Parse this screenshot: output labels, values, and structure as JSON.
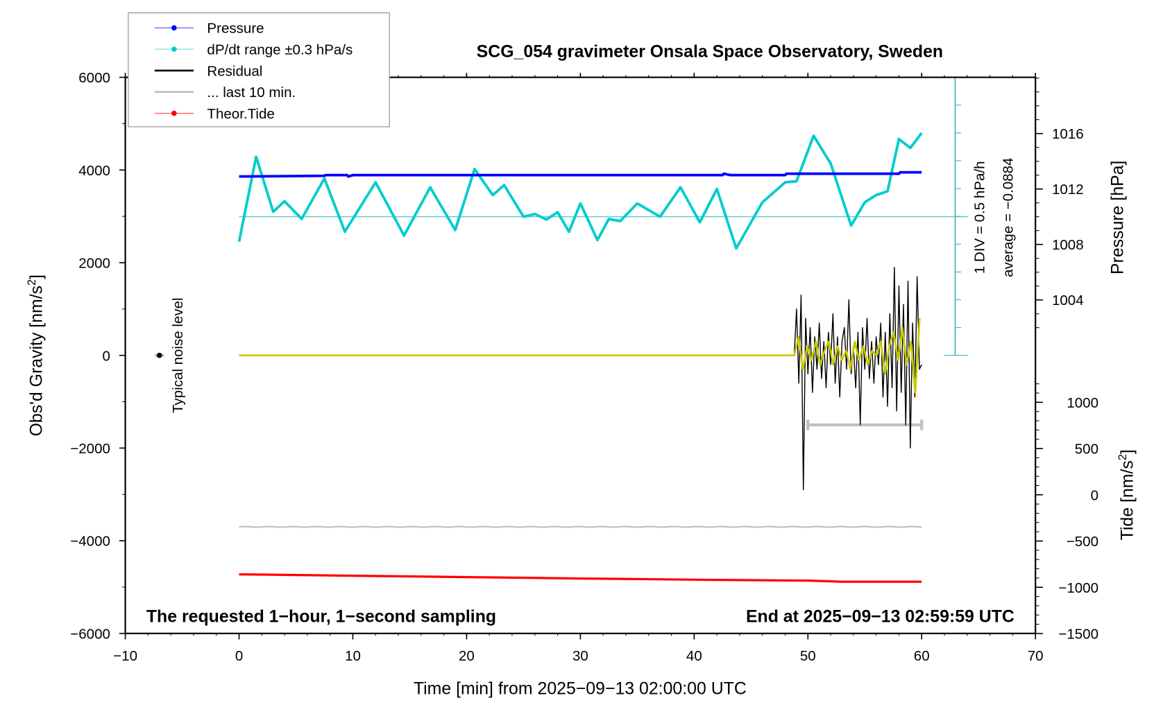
{
  "chart_data": {
    "type": "line",
    "title": "SCG_054 gravimeter Onsala Space Observatory, Sweden",
    "xlabel": "Time [min] from 2025−09−13 02:00:00 UTC",
    "ylabel": "Obs'd Gravity [nm/s²]",
    "ylabel_main": "Obs'd Gravity [nm/s",
    "ylabel_end": "]",
    "y2label": "Pressure [hPa]",
    "y3label_main": "Tide [nm/s",
    "y3label_end": "]",
    "xlim": [
      -10,
      70
    ],
    "ylim": [
      -6000,
      6000
    ],
    "pressure_lim_ticks": [
      1004,
      1008,
      1012,
      1016
    ],
    "tide_ticks": [
      1000,
      500,
      0,
      -500,
      -1000,
      -1500
    ],
    "x_ticks": [
      -10,
      0,
      10,
      20,
      30,
      40,
      50,
      60,
      70
    ],
    "y_ticks": [
      6000,
      4000,
      2000,
      0,
      -2000,
      -4000,
      -6000
    ],
    "legend": {
      "placement": "top-left",
      "entries": [
        {
          "label": "Pressure",
          "color": "#0000ff"
        },
        {
          "label": "dP/dt range ±0.3 hPa/s",
          "color": "#00cccc"
        },
        {
          "label": "Residual",
          "color": "#000000"
        },
        {
          "label": "... last 10 min.",
          "color": "#c0c0c0"
        },
        {
          "label": "Theor.Tide",
          "color": "#ff0000"
        }
      ]
    },
    "annotations": {
      "noise": "Typical noise level",
      "div": "1 DIV = 0.5 hPa/h",
      "average": "average = −0.0884",
      "bottom_left": "The requested 1−hour, 1−second sampling",
      "bottom_right": "End at 2025−09−13 02:59:59 UTC"
    },
    "series": {
      "pressure_hPa": {
        "t": [
          0,
          7.5,
          7.6,
          9.5,
          9.6,
          10,
          42.5,
          42.6,
          43.2,
          48,
          48.1,
          58,
          58.1,
          60
        ],
        "v": [
          1012.9,
          1012.95,
          1013.0,
          1013.0,
          1012.9,
          1013.0,
          1013.0,
          1013.1,
          1013.0,
          1013.0,
          1013.1,
          1013.1,
          1013.2,
          1013.2
        ]
      },
      "dpdt_hPa_per_h": {
        "t": [
          0,
          1.5,
          3,
          4,
          5.5,
          7.5,
          9.3,
          12,
          14.5,
          16.8,
          19,
          20.7,
          22.3,
          23.3,
          25,
          26,
          27,
          28,
          29,
          30,
          31.5,
          32.5,
          33.5,
          35,
          37,
          38.8,
          40.5,
          42,
          43.7,
          46,
          48,
          49,
          50.5,
          52,
          53.8,
          55,
          56,
          57,
          58,
          59,
          60
        ],
        "v": [
          -0.45,
          1.08,
          0.09,
          0.28,
          -0.04,
          0.69,
          -0.27,
          0.62,
          -0.34,
          0.53,
          -0.24,
          0.86,
          0.39,
          0.57,
          0.0,
          0.05,
          -0.05,
          0.08,
          -0.27,
          0.24,
          -0.42,
          -0.04,
          -0.08,
          0.24,
          0.0,
          0.53,
          -0.1,
          0.5,
          -0.57,
          0.26,
          0.62,
          0.64,
          1.46,
          0.96,
          -0.16,
          0.26,
          0.39,
          0.46,
          1.4,
          1.24,
          1.51
        ]
      },
      "residual": {
        "flat_until": 48.8,
        "start": 48.8,
        "step": 0.2,
        "v": [
          0,
          1000,
          -600,
          1300,
          -2900,
          800,
          -400,
          600,
          -800,
          400,
          -300,
          700,
          -500,
          300,
          -700,
          500,
          -200,
          900,
          -600,
          400,
          -900,
          300,
          600,
          -300,
          1200,
          -400,
          200,
          -700,
          500,
          -1500,
          600,
          -300,
          800,
          -500,
          300,
          -600,
          400,
          -200,
          700,
          -900,
          500,
          -1100,
          900,
          -700,
          1900,
          -1200,
          1500,
          -800,
          1100,
          -1500,
          1600,
          -2000,
          700,
          -900,
          1700,
          -300,
          -200
        ]
      },
      "residual_smoothed": {
        "start": 48.8,
        "step": 0.38,
        "v": [
          0,
          400,
          -300,
          200,
          -100,
          300,
          -200,
          100,
          300,
          -200,
          200,
          -100,
          100,
          -300,
          300,
          -100,
          200,
          -200,
          100,
          0,
          300,
          -400,
          200,
          500,
          -100,
          600,
          -200,
          300,
          -800,
          800
        ]
      },
      "last10_level": -3700,
      "last10_range": {
        "t": [
          50,
          60
        ],
        "level": -1500
      },
      "tide_nm_s2": {
        "t": [
          0,
          10,
          20,
          30,
          40,
          50,
          53,
          60
        ],
        "v": [
          -860,
          -875,
          -890,
          -905,
          -918,
          -928,
          -940,
          -940
        ]
      },
      "noise_point": {
        "t": -7,
        "v": 0
      }
    }
  }
}
